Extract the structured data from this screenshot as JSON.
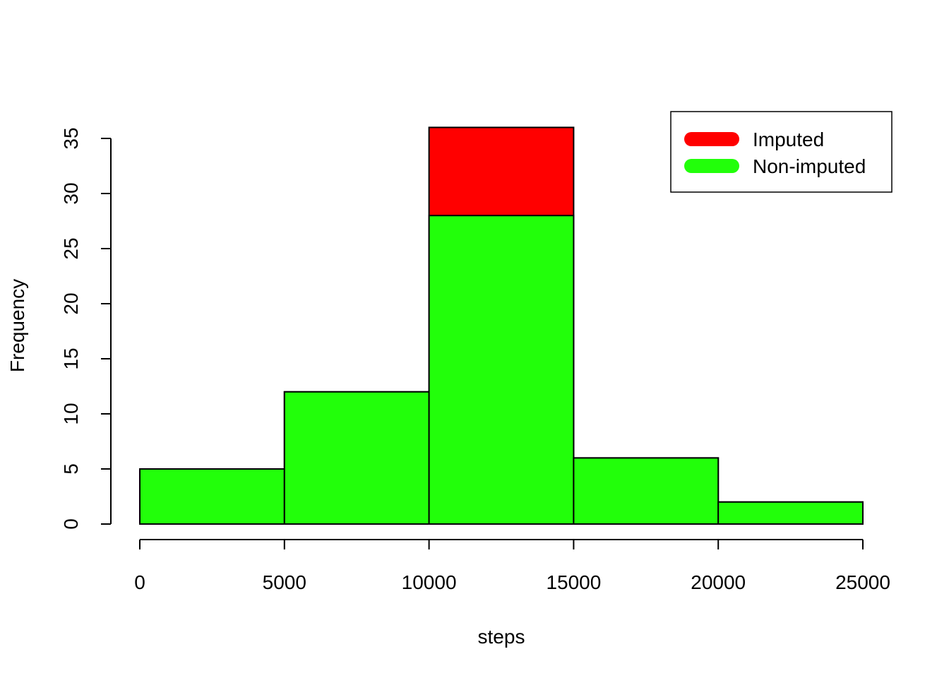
{
  "chart_data": {
    "type": "bar",
    "title": "",
    "xlabel": "steps",
    "ylabel": "Frequency",
    "bin_edges": [
      0,
      5000,
      10000,
      15000,
      20000,
      25000
    ],
    "x_ticks": [
      "0",
      "5000",
      "10000",
      "15000",
      "20000",
      "25000"
    ],
    "y_ticks": [
      "0",
      "5",
      "10",
      "15",
      "20",
      "25",
      "30",
      "35"
    ],
    "xlim": [
      0,
      25000
    ],
    "ylim": [
      0,
      35
    ],
    "grid": false,
    "legend_position": "top-right",
    "series": [
      {
        "name": "Imputed",
        "color": "#FF0000",
        "values": [
          5,
          12,
          36,
          6,
          2
        ]
      },
      {
        "name": "Non-imputed",
        "color": "#22FF0A",
        "values": [
          5,
          12,
          28,
          6,
          2
        ]
      }
    ]
  }
}
